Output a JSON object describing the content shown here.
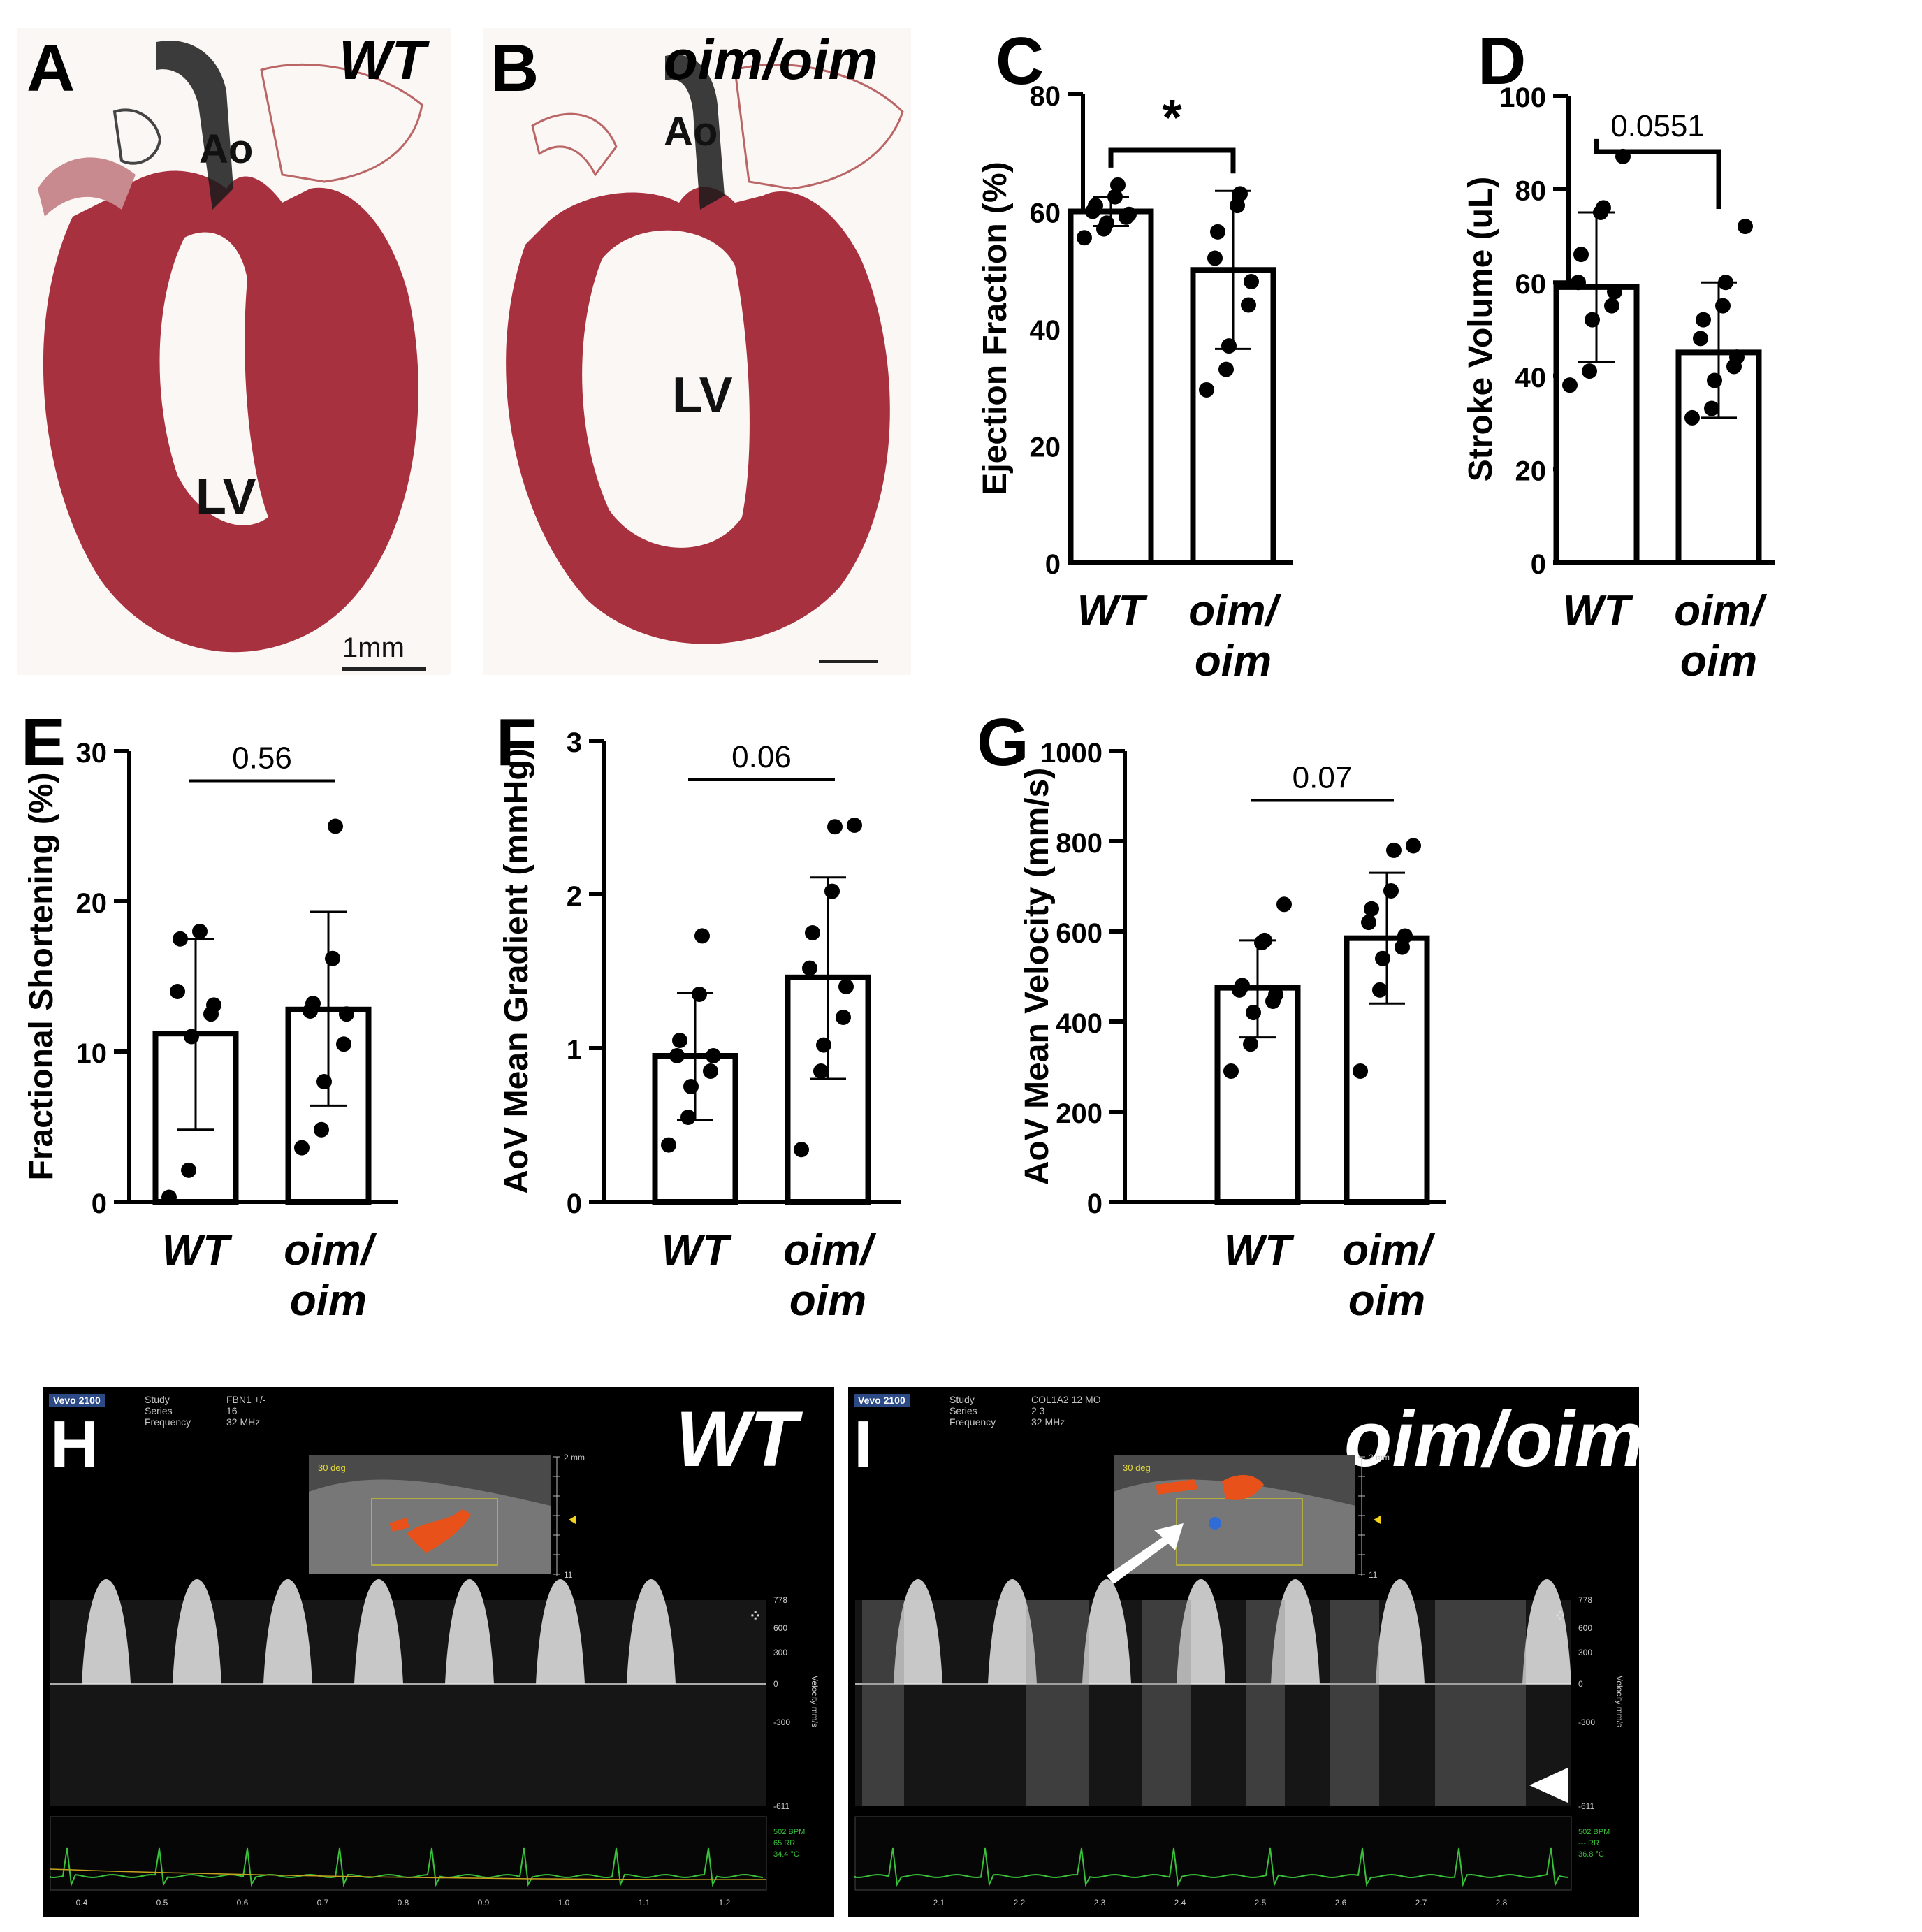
{
  "panels": {
    "A": {
      "letter": "A",
      "title": "WT",
      "labels": [
        "Ao",
        "LV"
      ],
      "scale": "1mm"
    },
    "B": {
      "letter": "B",
      "title": "oim/oim",
      "labels": [
        "Ao",
        "LV"
      ]
    },
    "H": {
      "letter": "H",
      "title": "WT",
      "brand": "Vevo 2100",
      "header": {
        "study_key": "Study",
        "study_val": "FBN1 +/-",
        "series_key": "Series",
        "series_val": "16",
        "freq_key": "Frequency",
        "freq_val": "32 MHz"
      },
      "angle": "30 deg",
      "vel_ticks": [
        "778",
        "600",
        "300",
        "0",
        "-300",
        "-611"
      ],
      "depth_ticks": [
        "2 mm",
        "",
        "",
        "",
        "",
        "",
        "11"
      ],
      "time_ticks": [
        "0.4",
        "0.5",
        "0.6",
        "0.7",
        "0.8",
        "0.9",
        "1.0",
        "1.1",
        "1.2"
      ],
      "vel_axis": "Velocity mm/s",
      "ecg": [
        "502 BPM",
        "65 RR",
        "34.4 °C"
      ]
    },
    "I": {
      "letter": "I",
      "title": "oim/oim",
      "brand": "Vevo 2100",
      "header": {
        "study_key": "Study",
        "study_val": "COL1A2 12 MO",
        "series_key": "Series",
        "series_val": "2 3",
        "freq_key": "Frequency",
        "freq_val": "32 MHz"
      },
      "angle": "30 deg",
      "vel_ticks": [
        "778",
        "600",
        "300",
        "0",
        "-300",
        "-611"
      ],
      "depth_ticks": [
        "2 mm",
        "",
        "",
        "",
        "",
        "",
        "11"
      ],
      "time_ticks": [
        "2.1",
        "2.2",
        "2.3",
        "2.4",
        "2.5",
        "2.6",
        "2.7",
        "2.8"
      ],
      "vel_axis": "Velocity mm/s",
      "ecg": [
        "502 BPM",
        "--- RR",
        "36.8 °C"
      ]
    }
  },
  "colors": {
    "bar_stroke": "#000000",
    "point": "#000000",
    "tissue": "#a8313f",
    "flow_red": "#e8521a",
    "flow_blue": "#2f6cd6",
    "ecg": "#39c13a"
  },
  "chart_data": [
    {
      "letter": "C",
      "type": "bar",
      "categories": [
        "WT",
        "oim/\noim"
      ],
      "ylabel": "Ejection Fraction (%)",
      "ylim": [
        0,
        80
      ],
      "yticks": [
        0,
        20,
        40,
        60,
        80
      ],
      "means": [
        60,
        50
      ],
      "sd": [
        [
          57.5,
          62.5
        ],
        [
          36.5,
          63.5
        ]
      ],
      "points": [
        [
          55.5,
          57,
          58,
          59,
          59.5,
          60,
          61,
          62.5,
          64.5
        ],
        [
          29.5,
          33,
          37,
          44,
          48,
          52,
          56.5,
          61,
          63
        ]
      ],
      "sig": "*"
    },
    {
      "letter": "D",
      "type": "bar",
      "categories": [
        "WT",
        "oim/\noim"
      ],
      "ylabel": "Stroke Volume (uL)",
      "ylim": [
        0,
        100
      ],
      "yticks": [
        0,
        20,
        40,
        60,
        80,
        100
      ],
      "means": [
        59,
        45
      ],
      "sd": [
        [
          43,
          75
        ],
        [
          31,
          60
        ]
      ],
      "points": [
        [
          38,
          41,
          52,
          55,
          58,
          60,
          66,
          75,
          76,
          87
        ],
        [
          31,
          33,
          39,
          42,
          44,
          48,
          52,
          55,
          60,
          72
        ]
      ],
      "sig": "0.0551"
    },
    {
      "letter": "E",
      "type": "bar",
      "categories": [
        "WT",
        "oim/\noim"
      ],
      "ylabel": "Fractional Shortening (%)",
      "ylim": [
        0,
        30
      ],
      "yticks": [
        0,
        10,
        20,
        30
      ],
      "means": [
        11.2,
        12.8
      ],
      "sd": [
        [
          4.8,
          17.5
        ],
        [
          6.4,
          19.3
        ]
      ],
      "points": [
        [
          0.3,
          2.1,
          11,
          12.5,
          13.1,
          14,
          17.5,
          18
        ],
        [
          3.6,
          4.8,
          8,
          10.5,
          12.5,
          12.7,
          13.2,
          16.2,
          25
        ]
      ],
      "sig": "0.56"
    },
    {
      "letter": "F",
      "type": "bar",
      "categories": [
        "WT",
        "oim/\noim"
      ],
      "ylabel": "AoV Mean Gradient (mmHg)",
      "ylim": [
        0,
        3
      ],
      "yticks": [
        0,
        1,
        2,
        3
      ],
      "means": [
        0.95,
        1.46
      ],
      "sd": [
        [
          0.53,
          1.36
        ],
        [
          0.8,
          2.11
        ]
      ],
      "points": [
        [
          0.37,
          0.55,
          0.75,
          0.85,
          0.95,
          0.95,
          1.05,
          1.35,
          1.73
        ],
        [
          0.34,
          0.85,
          1.02,
          1.2,
          1.4,
          1.52,
          1.75,
          2.02,
          2.44,
          2.45
        ]
      ],
      "sig": "0.06"
    },
    {
      "letter": "G",
      "type": "bar",
      "categories": [
        "WT",
        "oim/\noim"
      ],
      "ylabel": "AoV Mean Velocity (mm/s)",
      "ylim": [
        0,
        1000
      ],
      "yticks": [
        0,
        200,
        400,
        600,
        800,
        1000
      ],
      "means": [
        475,
        585
      ],
      "sd": [
        [
          365,
          580
        ],
        [
          440,
          730
        ]
      ],
      "points": [
        [
          290,
          350,
          420,
          445,
          460,
          470,
          480,
          575,
          580,
          660
        ],
        [
          290,
          470,
          540,
          565,
          590,
          620,
          650,
          690,
          780,
          790
        ]
      ],
      "sig": "0.07"
    }
  ]
}
